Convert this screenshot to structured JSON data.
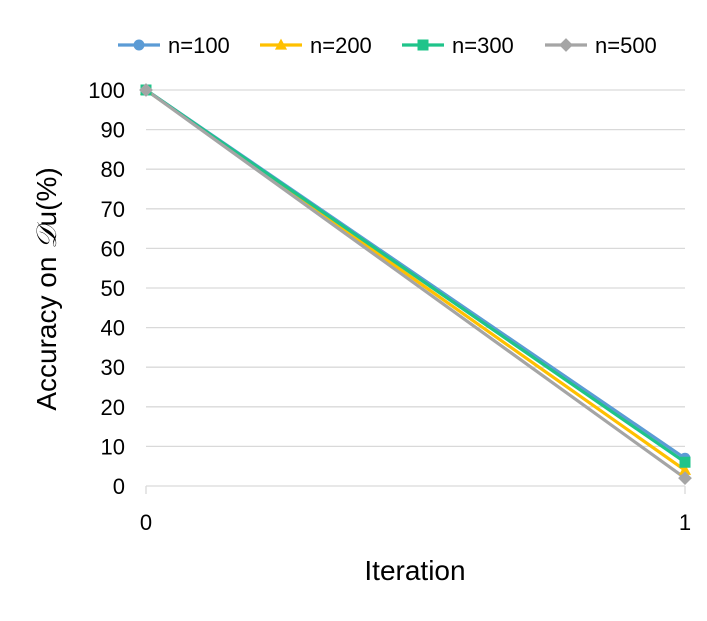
{
  "chart_data": {
    "type": "line",
    "title": "",
    "xlabel": "Iteration",
    "ylabel_prefix": "Accuracy on ",
    "ylabel_symbol": "𝒟",
    "ylabel_suffix": "u(%)",
    "x": [
      0,
      1
    ],
    "x_tick_labels": [
      "0",
      "1"
    ],
    "ylim": [
      0,
      100
    ],
    "y_ticks": [
      0,
      10,
      20,
      30,
      40,
      50,
      60,
      70,
      80,
      90,
      100
    ],
    "grid": true,
    "legend_position": "top",
    "series": [
      {
        "name": "n=100",
        "values": [
          100,
          7
        ],
        "color": "#5b9bd5",
        "marker": "circle"
      },
      {
        "name": "n=200",
        "values": [
          100,
          4
        ],
        "color": "#ffc000",
        "marker": "triangle"
      },
      {
        "name": "n=300",
        "values": [
          100,
          6
        ],
        "color": "#1fc48a",
        "marker": "square"
      },
      {
        "name": "n=500",
        "values": [
          100,
          2
        ],
        "color": "#a5a5a5",
        "marker": "diamond"
      }
    ]
  }
}
